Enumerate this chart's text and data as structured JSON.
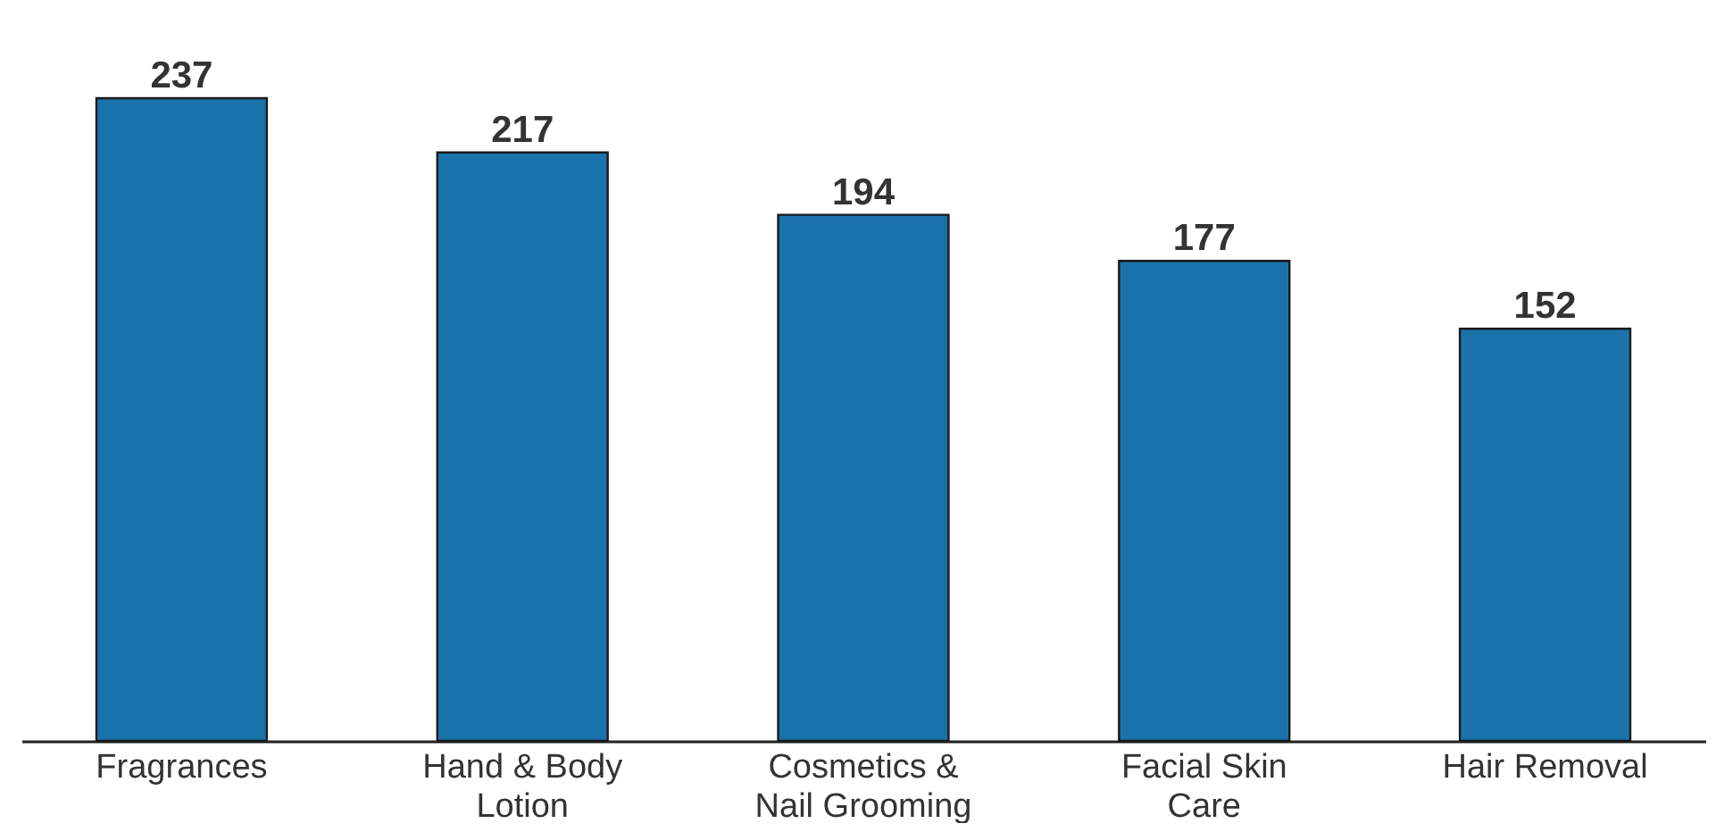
{
  "chart_data": {
    "type": "bar",
    "categories": [
      "Fragrances",
      "Hand & Body Lotion",
      "Cosmetics & Nail Grooming",
      "Facial Skin Care",
      "Hair Removal"
    ],
    "values": [
      237,
      217,
      194,
      177,
      152
    ],
    "color": "#1a72aa",
    "data_labels": true
  }
}
